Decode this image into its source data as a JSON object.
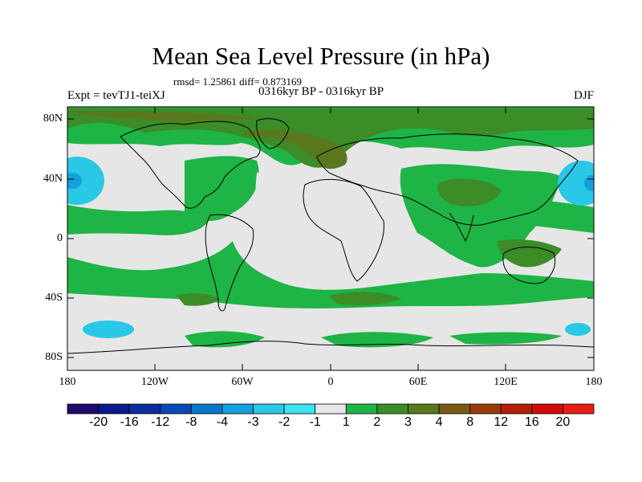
{
  "title": "Mean Sea Level Pressure (in hPa)",
  "stats": "rmsd= 1.25861 diff= 0.873169",
  "experiment": "Expt = tevTJ1-teiXJ",
  "period": "0316kyr BP - 0316kyr BP",
  "season": "DJF",
  "lat_ticks": [
    "80N",
    "40N",
    "0",
    "40S",
    "80S"
  ],
  "lon_ticks": [
    "180",
    "120W",
    "60W",
    "0",
    "60E",
    "120E",
    "180"
  ],
  "colorbar": {
    "labels": [
      "-20",
      "-16",
      "-12",
      "-8",
      "-4",
      "-3",
      "-2",
      "-1",
      "1",
      "2",
      "3",
      "4",
      "8",
      "12",
      "16",
      "20"
    ],
    "colors": [
      "#1f0a6e",
      "#0a1a8c",
      "#0a2ea0",
      "#0a4ab4",
      "#0a78c8",
      "#14a0dc",
      "#28c8e6",
      "#3ce4f0",
      "#e6e6e6",
      "#1eb446",
      "#3c8c28",
      "#5a781e",
      "#7a5a14",
      "#9a3c0a",
      "#b4200a",
      "#d20a0a",
      "#e81e14"
    ]
  }
}
